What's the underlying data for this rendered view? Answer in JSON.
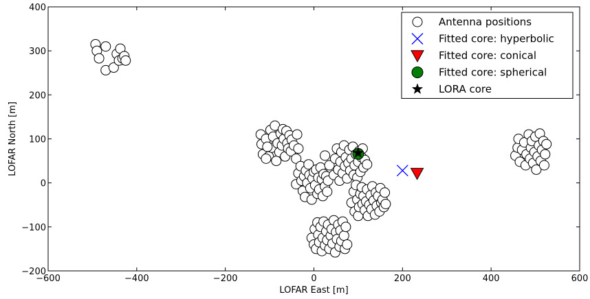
{
  "chart_data": {
    "type": "scatter",
    "title": "",
    "xlabel": "LOFAR East [m]",
    "ylabel": "LOFAR North [m]",
    "xlim": [
      -600,
      600
    ],
    "ylim": [
      -200,
      400
    ],
    "xticks": [
      -600,
      -400,
      -200,
      0,
      200,
      400,
      600
    ],
    "yticks": [
      -200,
      -100,
      0,
      100,
      200,
      300,
      400
    ],
    "xtick_labels": [
      "−600",
      "−400",
      "−200",
      "0",
      "200",
      "400",
      "600"
    ],
    "ytick_labels": [
      "−200",
      "−100",
      "0",
      "100",
      "200",
      "300",
      "400"
    ],
    "grid": false,
    "legend_position": "top-right",
    "series": [
      {
        "name": "Antenna positions",
        "marker": "circle",
        "color": "#ffffff",
        "edge_color": "#000000",
        "points": [
          [
            -493,
            315
          ],
          [
            -490,
            300
          ],
          [
            -485,
            283
          ],
          [
            -470,
            310
          ],
          [
            -470,
            256
          ],
          [
            -452,
            262
          ],
          [
            -445,
            293
          ],
          [
            -440,
            278
          ],
          [
            -437,
            305
          ],
          [
            -432,
            283
          ],
          [
            -428,
            288
          ],
          [
            -425,
            278
          ],
          [
            -120,
            110
          ],
          [
            -118,
            88
          ],
          [
            -115,
            65
          ],
          [
            -108,
            100
          ],
          [
            -102,
            60
          ],
          [
            -98,
            120
          ],
          [
            -95,
            80
          ],
          [
            -92,
            105
          ],
          [
            -88,
            130
          ],
          [
            -85,
            50
          ],
          [
            -82,
            90
          ],
          [
            -78,
            70
          ],
          [
            -75,
            112
          ],
          [
            -72,
            85
          ],
          [
            -70,
            122
          ],
          [
            -68,
            100
          ],
          [
            -65,
            60
          ],
          [
            -62,
            118
          ],
          [
            -60,
            90
          ],
          [
            -58,
            78
          ],
          [
            -55,
            108
          ],
          [
            -52,
            72
          ],
          [
            -50,
            98
          ],
          [
            -45,
            85
          ],
          [
            -40,
            55
          ],
          [
            -38,
            110
          ],
          [
            -35,
            78
          ],
          [
            -108,
            55
          ],
          [
            -105,
            82
          ],
          [
            -40,
            -3
          ],
          [
            -35,
            22
          ],
          [
            -30,
            38
          ],
          [
            -28,
            5
          ],
          [
            -25,
            -18
          ],
          [
            -22,
            15
          ],
          [
            -20,
            -32
          ],
          [
            -18,
            28
          ],
          [
            -15,
            0
          ],
          [
            -12,
            42
          ],
          [
            -10,
            18
          ],
          [
            -8,
            -12
          ],
          [
            -5,
            -38
          ],
          [
            -3,
            10
          ],
          [
            0,
            25
          ],
          [
            3,
            -5
          ],
          [
            5,
            30
          ],
          [
            8,
            -25
          ],
          [
            10,
            12
          ],
          [
            12,
            -15
          ],
          [
            15,
            35
          ],
          [
            18,
            8
          ],
          [
            20,
            -30
          ],
          [
            22,
            20
          ],
          [
            25,
            -8
          ],
          [
            28,
            15
          ],
          [
            30,
            -20
          ],
          [
            32,
            5
          ],
          [
            25,
            62
          ],
          [
            35,
            40
          ],
          [
            45,
            18
          ],
          [
            48,
            55
          ],
          [
            52,
            78
          ],
          [
            55,
            30
          ],
          [
            58,
            5
          ],
          [
            60,
            48
          ],
          [
            62,
            70
          ],
          [
            65,
            22
          ],
          [
            68,
            85
          ],
          [
            70,
            38
          ],
          [
            72,
            58
          ],
          [
            75,
            10
          ],
          [
            78,
            45
          ],
          [
            80,
            75
          ],
          [
            82,
            28
          ],
          [
            85,
            55
          ],
          [
            88,
            82
          ],
          [
            90,
            18
          ],
          [
            92,
            40
          ],
          [
            95,
            65
          ],
          [
            98,
            12
          ],
          [
            100,
            48
          ],
          [
            102,
            72
          ],
          [
            105,
            25
          ],
          [
            108,
            58
          ],
          [
            110,
            78
          ],
          [
            112,
            35
          ],
          [
            115,
            52
          ],
          [
            120,
            42
          ],
          [
            85,
            -45
          ],
          [
            90,
            -20
          ],
          [
            92,
            -65
          ],
          [
            95,
            -5
          ],
          [
            98,
            -38
          ],
          [
            100,
            -75
          ],
          [
            102,
            -55
          ],
          [
            105,
            -25
          ],
          [
            108,
            -10
          ],
          [
            110,
            -48
          ],
          [
            112,
            -30
          ],
          [
            115,
            -62
          ],
          [
            118,
            -42
          ],
          [
            120,
            -15
          ],
          [
            122,
            -75
          ],
          [
            125,
            -50
          ],
          [
            128,
            -28
          ],
          [
            130,
            -60
          ],
          [
            132,
            -8
          ],
          [
            135,
            -40
          ],
          [
            138,
            -72
          ],
          [
            140,
            -22
          ],
          [
            142,
            -52
          ],
          [
            145,
            -30
          ],
          [
            148,
            -65
          ],
          [
            150,
            -12
          ],
          [
            152,
            -45
          ],
          [
            155,
            -38
          ],
          [
            158,
            -55
          ],
          [
            160,
            -22
          ],
          [
            162,
            -48
          ],
          [
            -5,
            -125
          ],
          [
            0,
            -140
          ],
          [
            2,
            -105
          ],
          [
            5,
            -150
          ],
          [
            8,
            -90
          ],
          [
            10,
            -118
          ],
          [
            12,
            -135
          ],
          [
            15,
            -100
          ],
          [
            18,
            -155
          ],
          [
            20,
            -125
          ],
          [
            22,
            -88
          ],
          [
            25,
            -142
          ],
          [
            28,
            -110
          ],
          [
            30,
            -130
          ],
          [
            32,
            -95
          ],
          [
            35,
            -150
          ],
          [
            38,
            -120
          ],
          [
            40,
            -105
          ],
          [
            42,
            -138
          ],
          [
            45,
            -85
          ],
          [
            48,
            -158
          ],
          [
            50,
            -112
          ],
          [
            52,
            -128
          ],
          [
            55,
            -95
          ],
          [
            58,
            -145
          ],
          [
            60,
            -108
          ],
          [
            62,
            -132
          ],
          [
            65,
            -88
          ],
          [
            68,
            -120
          ],
          [
            70,
            -150
          ],
          [
            72,
            -100
          ],
          [
            75,
            -140
          ],
          [
            455,
            62
          ],
          [
            460,
            80
          ],
          [
            462,
            100
          ],
          [
            465,
            48
          ],
          [
            470,
            75
          ],
          [
            475,
            92
          ],
          [
            478,
            40
          ],
          [
            480,
            65
          ],
          [
            485,
            110
          ],
          [
            488,
            55
          ],
          [
            490,
            80
          ],
          [
            492,
            95
          ],
          [
            495,
            45
          ],
          [
            498,
            70
          ],
          [
            500,
            105
          ],
          [
            502,
            30
          ],
          [
            505,
            60
          ],
          [
            508,
            85
          ],
          [
            510,
            112
          ],
          [
            512,
            50
          ],
          [
            515,
            75
          ],
          [
            518,
            95
          ],
          [
            520,
            40
          ],
          [
            522,
            65
          ],
          [
            525,
            88
          ]
        ]
      },
      {
        "name": "Fitted core: hyperbolic",
        "marker": "x",
        "color": "#0000ff",
        "points": [
          [
            200,
            28
          ]
        ]
      },
      {
        "name": "Fitted core: conical",
        "marker": "triangle-down",
        "color": "#ff0000",
        "edge_color": "#000000",
        "points": [
          [
            233,
            22
          ]
        ]
      },
      {
        "name": "Fitted core: spherical",
        "marker": "circle",
        "color": "#008000",
        "edge_color": "#000000",
        "points": [
          [
            100,
            66
          ]
        ]
      },
      {
        "name": "LORA core",
        "marker": "star",
        "color": "#000000",
        "points": [
          [
            100,
            68
          ]
        ]
      }
    ]
  }
}
